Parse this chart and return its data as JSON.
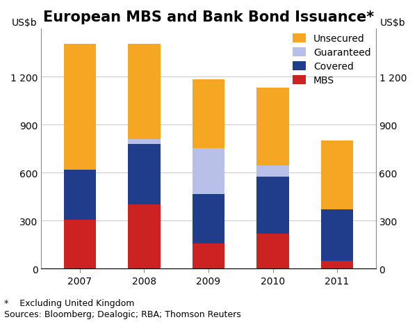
{
  "title": "European MBS and Bank Bond Issuance*",
  "ylabel_left": "US$b",
  "ylabel_right": "US$b",
  "footnote1": "*    Excluding United Kingdom",
  "footnote2": "Sources: Bloomberg; Dealogic; RBA; Thomson Reuters",
  "categories": [
    "2007",
    "2008",
    "2009",
    "2010",
    "2011"
  ],
  "mbs": [
    305,
    400,
    160,
    220,
    50
  ],
  "covered": [
    315,
    380,
    305,
    355,
    320
  ],
  "guaranteed": [
    0,
    30,
    290,
    70,
    0
  ],
  "unsecured": [
    785,
    595,
    430,
    485,
    430
  ],
  "ylim": [
    0,
    1500
  ],
  "yticks": [
    0,
    300,
    600,
    900,
    1200
  ],
  "color_mbs": "#cc2222",
  "color_covered": "#1f3d8a",
  "color_guaranteed": "#b8bfe8",
  "color_unsecured": "#f5a623",
  "background_color": "#ffffff",
  "grid_color": "#cccccc",
  "bar_width": 0.5,
  "legend_labels": [
    "Unsecured",
    "Guaranteed",
    "Covered",
    "MBS"
  ],
  "title_fontsize": 15,
  "tick_fontsize": 10,
  "legend_fontsize": 10,
  "footnote_fontsize": 9
}
